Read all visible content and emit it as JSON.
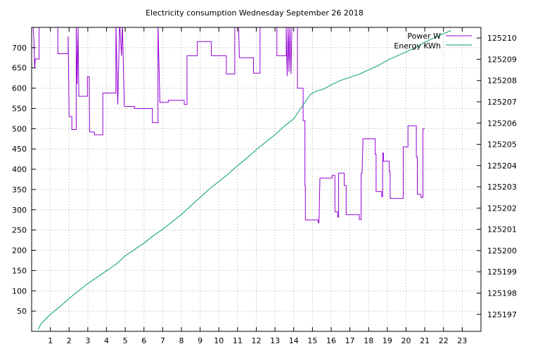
{
  "chart_data": {
    "type": "line",
    "title": "Electricity consumption Wednesday September 26 2018",
    "xlabel": "",
    "ylabel": "",
    "y2label": "",
    "xlim": [
      0,
      24
    ],
    "ylim": [
      0,
      750
    ],
    "y2lim": [
      125196.2,
      125210.5
    ],
    "grid": true,
    "legend": "top-right",
    "x_ticks": [
      1,
      2,
      3,
      4,
      5,
      6,
      7,
      8,
      9,
      10,
      11,
      12,
      13,
      14,
      15,
      16,
      17,
      18,
      19,
      20,
      21,
      22,
      23
    ],
    "y_ticks": [
      50,
      100,
      150,
      200,
      250,
      300,
      350,
      400,
      450,
      500,
      550,
      600,
      650,
      700
    ],
    "y2_ticks": [
      125197,
      125198,
      125199,
      125200,
      125201,
      125202,
      125203,
      125204,
      125205,
      125206,
      125207,
      125208,
      125209,
      125210
    ],
    "series": [
      {
        "name": "Power W",
        "color": "#9400d3",
        "axis": "y",
        "step": true,
        "points": [
          [
            0.0,
            760
          ],
          [
            0.08,
            760
          ],
          [
            0.08,
            750
          ],
          [
            0.12,
            720
          ],
          [
            0.16,
            650
          ],
          [
            0.2,
            672
          ],
          [
            0.4,
            672
          ],
          [
            0.4,
            750
          ],
          [
            0.5,
            750
          ],
          [
            1.4,
            750
          ],
          [
            1.4,
            685
          ],
          [
            1.95,
            685
          ],
          [
            1.95,
            728
          ],
          [
            2.0,
            530
          ],
          [
            2.15,
            530
          ],
          [
            2.15,
            498
          ],
          [
            2.38,
            498
          ],
          [
            2.38,
            750
          ],
          [
            2.43,
            610
          ],
          [
            2.48,
            750
          ],
          [
            2.52,
            580
          ],
          [
            2.98,
            580
          ],
          [
            2.98,
            628
          ],
          [
            3.08,
            628
          ],
          [
            3.08,
            598
          ],
          [
            3.1,
            492
          ],
          [
            3.35,
            492
          ],
          [
            3.35,
            485
          ],
          [
            3.8,
            485
          ],
          [
            3.8,
            588
          ],
          [
            4.5,
            588
          ],
          [
            4.5,
            760
          ],
          [
            4.6,
            560
          ],
          [
            4.7,
            760
          ],
          [
            4.8,
            680
          ],
          [
            4.85,
            760
          ],
          [
            4.95,
            555
          ],
          [
            5.5,
            555
          ],
          [
            5.5,
            550
          ],
          [
            6.45,
            550
          ],
          [
            6.45,
            515
          ],
          [
            6.75,
            515
          ],
          [
            6.75,
            760
          ],
          [
            6.85,
            565
          ],
          [
            7.3,
            565
          ],
          [
            7.3,
            570
          ],
          [
            8.15,
            570
          ],
          [
            8.15,
            560
          ],
          [
            8.3,
            560
          ],
          [
            8.3,
            680
          ],
          [
            8.85,
            680
          ],
          [
            8.85,
            715
          ],
          [
            9.6,
            715
          ],
          [
            9.6,
            680
          ],
          [
            10.4,
            680
          ],
          [
            10.4,
            635
          ],
          [
            10.85,
            635
          ],
          [
            10.85,
            760
          ],
          [
            11.05,
            760
          ],
          [
            11.1,
            675
          ],
          [
            11.85,
            675
          ],
          [
            11.85,
            637
          ],
          [
            12.2,
            637
          ],
          [
            12.2,
            750
          ],
          [
            13.1,
            750
          ],
          [
            13.1,
            680
          ],
          [
            13.6,
            680
          ],
          [
            13.6,
            750
          ],
          [
            13.65,
            630
          ],
          [
            13.7,
            750
          ],
          [
            13.75,
            640
          ],
          [
            13.8,
            750
          ],
          [
            13.85,
            635
          ],
          [
            13.9,
            750
          ],
          [
            14.2,
            750
          ],
          [
            14.2,
            600
          ],
          [
            14.5,
            600
          ],
          [
            14.5,
            520
          ],
          [
            14.6,
            520
          ],
          [
            14.6,
            358
          ],
          [
            14.62,
            358
          ],
          [
            14.62,
            275
          ],
          [
            15.3,
            275
          ],
          [
            15.3,
            268
          ],
          [
            15.35,
            268
          ],
          [
            15.4,
            378
          ],
          [
            16.05,
            378
          ],
          [
            16.05,
            385
          ],
          [
            16.2,
            385
          ],
          [
            16.2,
            295
          ],
          [
            16.35,
            295
          ],
          [
            16.35,
            282
          ],
          [
            16.4,
            282
          ],
          [
            16.4,
            390
          ],
          [
            16.7,
            390
          ],
          [
            16.7,
            360
          ],
          [
            16.8,
            360
          ],
          [
            16.8,
            288
          ],
          [
            17.2,
            288
          ],
          [
            17.2,
            288
          ],
          [
            17.5,
            288
          ],
          [
            17.5,
            276
          ],
          [
            17.6,
            276
          ],
          [
            17.6,
            390
          ],
          [
            17.65,
            390
          ],
          [
            17.7,
            475
          ],
          [
            18.35,
            475
          ],
          [
            18.35,
            437
          ],
          [
            18.4,
            437
          ],
          [
            18.4,
            345
          ],
          [
            18.7,
            345
          ],
          [
            18.7,
            332
          ],
          [
            18.75,
            332
          ],
          [
            18.75,
            440
          ],
          [
            18.8,
            440
          ],
          [
            18.8,
            420
          ],
          [
            19.1,
            420
          ],
          [
            19.1,
            395
          ],
          [
            19.15,
            395
          ],
          [
            19.15,
            328
          ],
          [
            19.85,
            328
          ],
          [
            19.85,
            455
          ],
          [
            20.1,
            455
          ],
          [
            20.1,
            507
          ],
          [
            20.55,
            507
          ],
          [
            20.55,
            430
          ],
          [
            20.6,
            430
          ],
          [
            20.6,
            338
          ],
          [
            20.8,
            338
          ],
          [
            20.8,
            330
          ],
          [
            20.9,
            330
          ],
          [
            20.9,
            500
          ],
          [
            21.0,
            500
          ]
        ]
      },
      {
        "name": "Energy KWh",
        "color": "#009e73",
        "axis": "y2",
        "step": false,
        "points": [
          [
            0.35,
            125196.3
          ],
          [
            0.5,
            125196.55
          ],
          [
            1.0,
            125197.0
          ],
          [
            1.5,
            125197.35
          ],
          [
            2.0,
            125197.75
          ],
          [
            2.5,
            125198.1
          ],
          [
            3.0,
            125198.45
          ],
          [
            3.5,
            125198.75
          ],
          [
            4.0,
            125199.05
          ],
          [
            4.5,
            125199.35
          ],
          [
            5.0,
            125199.75
          ],
          [
            5.5,
            125200.05
          ],
          [
            6.0,
            125200.35
          ],
          [
            6.5,
            125200.7
          ],
          [
            7.0,
            125201.0
          ],
          [
            7.5,
            125201.35
          ],
          [
            8.0,
            125201.7
          ],
          [
            8.5,
            125202.1
          ],
          [
            9.0,
            125202.5
          ],
          [
            9.5,
            125202.9
          ],
          [
            10.0,
            125203.25
          ],
          [
            10.5,
            125203.6
          ],
          [
            11.0,
            125204.0
          ],
          [
            11.5,
            125204.35
          ],
          [
            12.0,
            125204.75
          ],
          [
            12.5,
            125205.1
          ],
          [
            13.0,
            125205.45
          ],
          [
            13.5,
            125205.85
          ],
          [
            14.0,
            125206.2
          ],
          [
            14.5,
            125206.85
          ],
          [
            14.9,
            125207.35
          ],
          [
            15.2,
            125207.5
          ],
          [
            15.6,
            125207.6
          ],
          [
            16.0,
            125207.8
          ],
          [
            16.5,
            125208.0
          ],
          [
            17.0,
            125208.15
          ],
          [
            17.5,
            125208.3
          ],
          [
            18.0,
            125208.5
          ],
          [
            18.5,
            125208.7
          ],
          [
            19.0,
            125208.95
          ],
          [
            19.5,
            125209.15
          ],
          [
            20.0,
            125209.35
          ],
          [
            20.5,
            125209.55
          ],
          [
            21.0,
            125209.8
          ],
          [
            21.5,
            125210.0
          ],
          [
            22.0,
            125210.2
          ],
          [
            22.4,
            125210.35
          ]
        ]
      }
    ]
  }
}
